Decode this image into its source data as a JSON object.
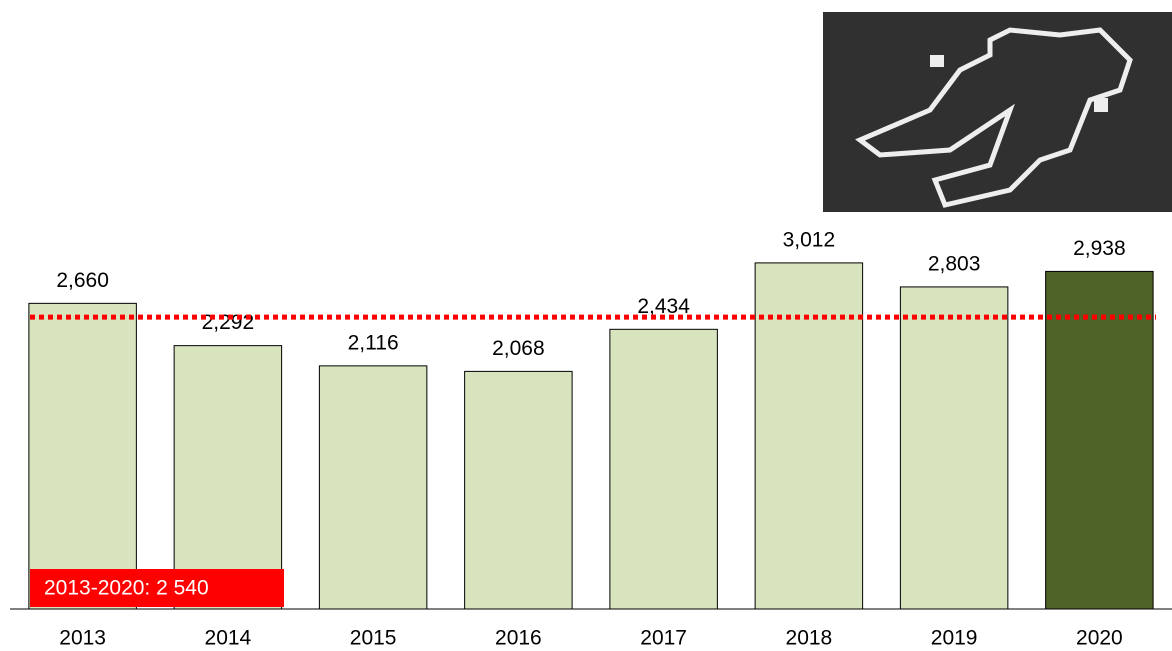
{
  "chart_data": {
    "type": "bar",
    "categories": [
      "2013",
      "2014",
      "2015",
      "2016",
      "2017",
      "2018",
      "2019",
      "2020"
    ],
    "values": [
      2660,
      2292,
      2116,
      2068,
      2434,
      3012,
      2803,
      2938
    ],
    "value_labels": [
      "2,660",
      "2,292",
      "2,116",
      "2,068",
      "2,434",
      "3,012",
      "2,803",
      "2,938"
    ],
    "colors": [
      "#d7e4bd",
      "#d7e4bd",
      "#d7e4bd",
      "#d7e4bd",
      "#d7e4bd",
      "#d7e4bd",
      "#d7e4bd",
      "#4f6228"
    ],
    "ylim": [
      0,
      5300
    ],
    "reference_line": {
      "value": 2540,
      "label": "2013-2020: 2 540",
      "color": "#ff0000"
    }
  }
}
